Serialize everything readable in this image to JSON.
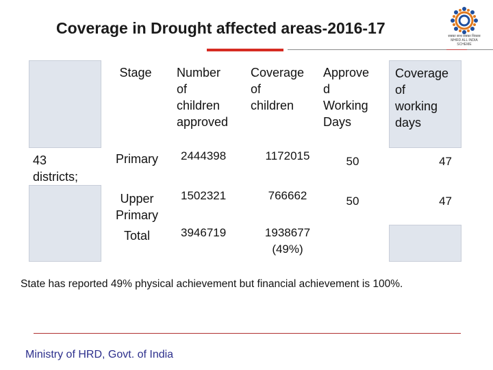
{
  "title": "Coverage in Drought affected areas-2016-17",
  "logo": {
    "caption_line1": "सबका साथ सबका विकास",
    "caption_line2": "MHRD ALL INDIA SCHEME"
  },
  "table": {
    "headers": {
      "stage": "Stage",
      "children_approved": [
        "Number",
        "of",
        "children",
        "approved"
      ],
      "coverage_children": [
        "Coverage",
        "of",
        "children"
      ],
      "approved_days": [
        "Approve",
        "d",
        "Working",
        "Days"
      ],
      "coverage_days": [
        "Coverage",
        "of",
        "working",
        "days"
      ]
    },
    "row_label": [
      "43",
      "districts;"
    ],
    "rows": [
      {
        "stage": [
          "Primary"
        ],
        "children_approved": "2444398",
        "coverage_children": [
          "1172015"
        ],
        "approved_days": "50",
        "coverage_days": "47"
      },
      {
        "stage": [
          "Upper",
          "Primary"
        ],
        "children_approved": "1502321",
        "coverage_children": [
          "766662"
        ],
        "approved_days": "50",
        "coverage_days": "47"
      },
      {
        "stage": [
          "Total"
        ],
        "children_approved": "3946719",
        "coverage_children": [
          "1938677",
          "(49%)"
        ],
        "approved_days": "",
        "coverage_days": ""
      }
    ]
  },
  "note": "State has reported 49% physical achievement but financial achievement is 100%.",
  "footer": "Ministry of HRD, Govt. of India",
  "colors": {
    "title": "#1a1a1a",
    "accent_red": "#d62b22",
    "cell_shade": "#e0e5ed",
    "footer": "#2c2f8c"
  }
}
